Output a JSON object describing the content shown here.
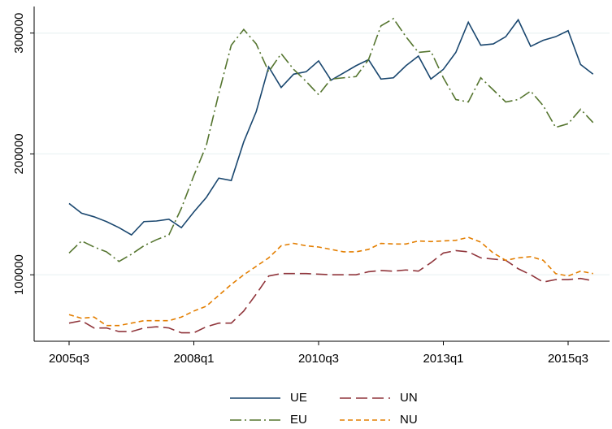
{
  "chart_data": {
    "type": "line",
    "categories": [
      "2005q3",
      null,
      null,
      null,
      null,
      null,
      null,
      null,
      null,
      null,
      "2008q1",
      null,
      null,
      null,
      null,
      null,
      null,
      null,
      null,
      null,
      "2010q3",
      null,
      null,
      null,
      null,
      null,
      null,
      null,
      null,
      null,
      "2013q1",
      null,
      null,
      null,
      null,
      null,
      null,
      null,
      null,
      null,
      "2015q3",
      null,
      null
    ],
    "series": [
      {
        "name": "UE",
        "color": "#1a476f",
        "dash": "none",
        "values": [
          159000,
          151000,
          148000,
          144000,
          139000,
          133000,
          144000,
          144500,
          146000,
          139000,
          152000,
          164000,
          180000,
          178000,
          210000,
          235000,
          272000,
          255000,
          266000,
          268000,
          277000,
          261000,
          267000,
          273000,
          278000,
          262000,
          263000,
          273000,
          281000,
          262000,
          270000,
          284000,
          309000,
          290000,
          291000,
          297000,
          311000,
          289000,
          294000,
          297000,
          302000,
          274000,
          266000
        ]
      },
      {
        "name": "UN",
        "color": "#90353b",
        "dash": "14,6",
        "values": [
          60000,
          62000,
          56000,
          56000,
          53000,
          53000,
          56000,
          57000,
          56000,
          52000,
          52000,
          57000,
          60000,
          60000,
          70000,
          84000,
          99000,
          101000,
          101000,
          101000,
          100500,
          100000,
          100000,
          100000,
          102500,
          103500,
          103000,
          104000,
          103000,
          110000,
          118000,
          120000,
          119000,
          114000,
          113000,
          112000,
          105000,
          100000,
          94000,
          96000,
          96000,
          97000,
          95000
        ]
      },
      {
        "name": "EU",
        "color": "#55752f",
        "dash": "14,4,2,4",
        "values": [
          118000,
          128000,
          123000,
          119000,
          111000,
          117000,
          124000,
          129000,
          133000,
          155000,
          182000,
          207000,
          250000,
          290000,
          303000,
          291000,
          268000,
          283000,
          270000,
          260000,
          249000,
          262000,
          263000,
          264000,
          278000,
          306000,
          312000,
          297000,
          284000,
          285000,
          263000,
          245000,
          243000,
          263000,
          253000,
          243000,
          245000,
          252000,
          240000,
          222000,
          225000,
          237000,
          226000
        ]
      },
      {
        "name": "NU",
        "color": "#e37e00",
        "dash": "6,4",
        "values": [
          67000,
          64000,
          65000,
          58000,
          58000,
          60000,
          62000,
          62000,
          62000,
          65000,
          70000,
          74000,
          83000,
          92000,
          100000,
          107000,
          114000,
          124000,
          126000,
          124000,
          123000,
          121000,
          119000,
          119000,
          121000,
          126000,
          125500,
          125500,
          128000,
          127500,
          128000,
          128500,
          131000,
          127000,
          118000,
          112000,
          114000,
          115000,
          112000,
          101000,
          99000,
          103000,
          101000
        ]
      }
    ],
    "ylim": [
      45000,
      322000
    ],
    "yticks": [
      100000,
      200000,
      300000
    ],
    "grid": true
  }
}
